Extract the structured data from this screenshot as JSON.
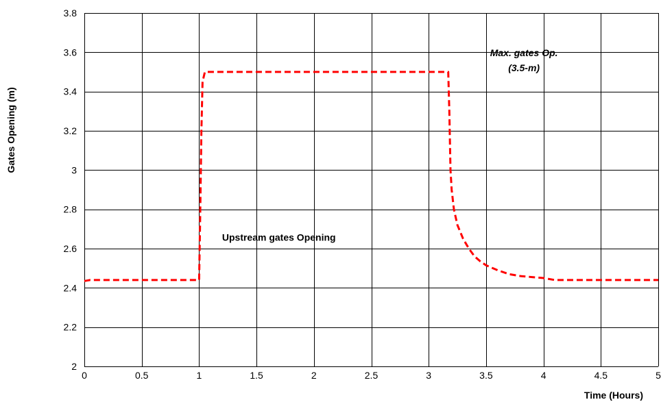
{
  "chart_data": {
    "type": "line",
    "xlabel": "Time (Hours)",
    "ylabel": "Gates Opening (m)",
    "xlim": [
      0,
      5
    ],
    "ylim": [
      2,
      3.8
    ],
    "x_ticks": [
      0,
      0.5,
      1,
      1.5,
      2,
      2.5,
      3,
      3.5,
      4,
      4.5,
      5
    ],
    "x_tick_labels": [
      "0",
      "0.5",
      "1",
      "1.5",
      "2",
      "2.5",
      "3",
      "3.5",
      "4",
      "4.5",
      "5"
    ],
    "y_ticks": [
      2,
      2.2,
      2.4,
      2.6,
      2.8,
      3,
      3.2,
      3.4,
      3.6,
      3.8
    ],
    "y_tick_labels": [
      "2",
      "2.2",
      "2.4",
      "2.6",
      "2.8",
      "3",
      "3.2",
      "3.4",
      "3.6",
      "3.8"
    ],
    "grid": true,
    "series": [
      {
        "color": "#ff0000",
        "style": "dashed",
        "x": [
          0,
          0.05,
          1.0,
          1.01,
          1.02,
          1.03,
          1.05,
          1.1,
          3.17,
          3.18,
          3.19,
          3.2,
          3.22,
          3.25,
          3.3,
          3.35,
          3.4,
          3.45,
          3.5,
          3.6,
          3.7,
          3.8,
          3.9,
          4.0,
          4.1,
          4.5,
          5.0
        ],
        "y": [
          2.435,
          2.44,
          2.44,
          2.8,
          3.2,
          3.45,
          3.5,
          3.5,
          3.5,
          3.3,
          3.0,
          2.9,
          2.8,
          2.72,
          2.65,
          2.6,
          2.56,
          2.535,
          2.515,
          2.49,
          2.47,
          2.46,
          2.455,
          2.45,
          2.44,
          2.44,
          2.44
        ]
      }
    ],
    "annotations": [
      {
        "lines": [
          "Upstream gates Opening"
        ],
        "x": 1.2,
        "y": 2.64,
        "italic": false
      },
      {
        "lines": [
          "Max. gates Op.",
          "(3.5-m)"
        ],
        "x": 3.83,
        "y": 3.58,
        "italic": true
      }
    ]
  }
}
